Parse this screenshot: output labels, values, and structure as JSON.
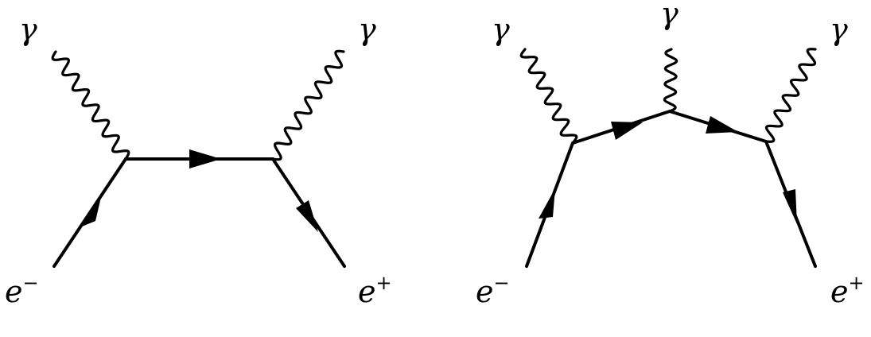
{
  "diagrams": [
    {
      "labels": {
        "photon_left": "γ",
        "photon_right": "γ",
        "electron_base": "e",
        "electron_charge": "−",
        "positron_base": "e",
        "positron_charge": "+"
      }
    },
    {
      "labels": {
        "photon_left": "γ",
        "photon_middle": "γ",
        "photon_right": "γ",
        "electron_base": "e",
        "electron_charge": "−",
        "positron_base": "e",
        "positron_charge": "+"
      }
    }
  ]
}
